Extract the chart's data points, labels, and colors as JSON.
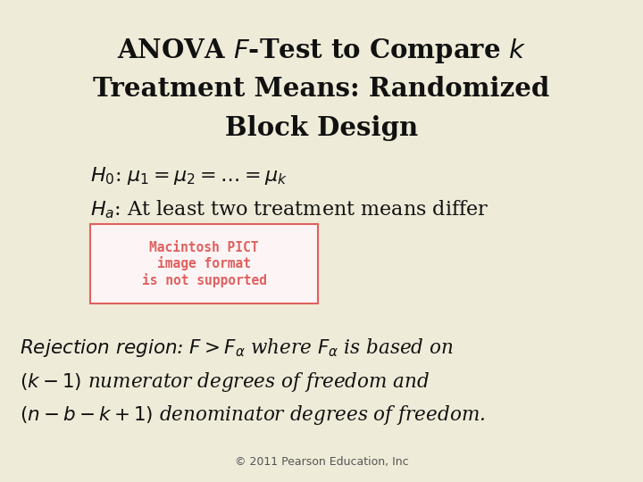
{
  "bg_color": "#eeebd8",
  "title_line1": "ANOVA $\\mathit{F}$-Test to Compare $\\mathit{k}$",
  "title_line2": "Treatment Means: Randomized",
  "title_line3": "Block Design",
  "h0_text": "$H_0$: $\\mu_1 = \\mu_2 = \\ldots = \\mu_k$",
  "ha_text": "$H_a$: At least two treatment means differ",
  "pict_text": "Macintosh PICT\nimage format\nis not supported",
  "pict_color": "#e06060",
  "pict_bg": "#fdf5f5",
  "pict_border": "#e06060",
  "rej_line1": "$\\mathit{Rejection\\ region}$: $F > F_{\\alpha}$ where $F_{\\alpha}$ is based on",
  "rej_line2": "$(k-1)$ numerator degrees of freedom and",
  "rej_line3": "$(n - b - k +1)$ denominator degrees of freedom.",
  "footer": "© 2011 Pearson Education, Inc",
  "text_color": "#111111",
  "footer_color": "#555555"
}
